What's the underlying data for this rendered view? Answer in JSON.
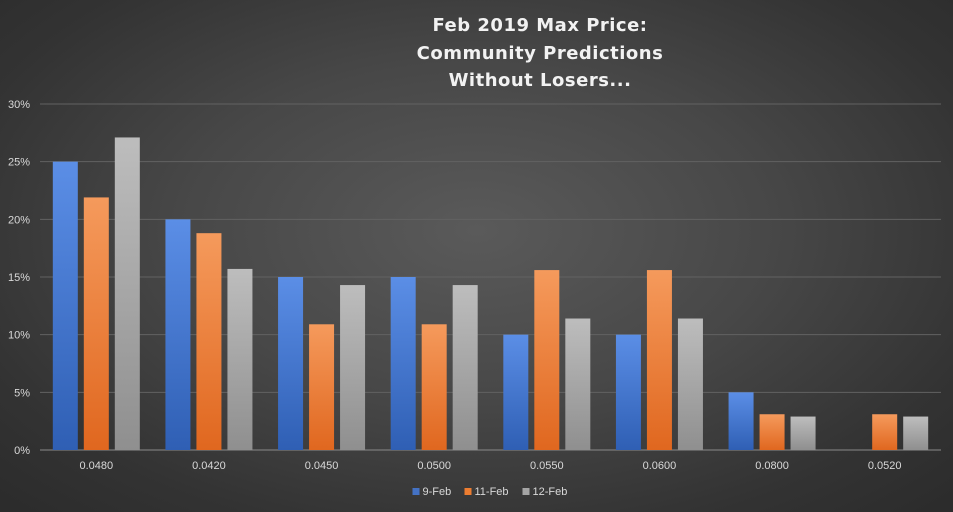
{
  "chart_data": {
    "type": "bar",
    "title_lines": [
      "Feb 2019 Max Price:",
      "Community  Predictions",
      "Without  Losers..."
    ],
    "xlabel": "",
    "ylabel": "",
    "categories": [
      "0.0480",
      "0.0420",
      "0.0450",
      "0.0500",
      "0.0550",
      "0.0600",
      "0.0800",
      "0.0520"
    ],
    "series": [
      {
        "name": "9-Feb",
        "color": "#4472c4",
        "values": [
          25,
          20,
          15,
          15,
          10,
          10,
          5,
          0
        ]
      },
      {
        "name": "11-Feb",
        "color": "#ed7d31",
        "values": [
          21.9,
          18.8,
          10.9,
          10.9,
          15.6,
          15.6,
          3.1,
          3.1
        ]
      },
      {
        "name": "12-Feb",
        "color": "#a5a5a5",
        "values": [
          27.1,
          15.7,
          14.3,
          14.3,
          11.4,
          11.4,
          2.9,
          2.9
        ]
      }
    ],
    "ylim": [
      0,
      30
    ],
    "yticks": [
      0,
      5,
      10,
      15,
      20,
      25,
      30
    ],
    "ytick_labels": [
      "0%",
      "5%",
      "10%",
      "15%",
      "20%",
      "25%",
      "30%"
    ],
    "grid": true,
    "legend_position": "bottom"
  }
}
